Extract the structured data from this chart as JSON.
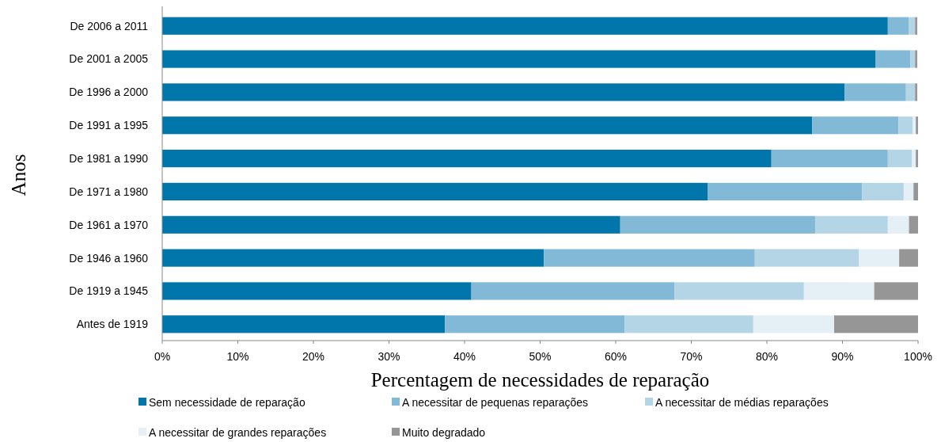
{
  "chart_data": {
    "type": "bar",
    "orientation": "horizontal",
    "stacked": true,
    "xlabel": "Percentagem de necessidades de reparação",
    "ylabel": "Anos",
    "legend": "bottom",
    "xlim": [
      0,
      100
    ],
    "xticks": [
      {
        "value": 0,
        "label": "0%"
      },
      {
        "value": 10,
        "label": "10%"
      },
      {
        "value": 20,
        "label": "20%"
      },
      {
        "value": 30,
        "label": "30%"
      },
      {
        "value": 40,
        "label": "40%"
      },
      {
        "value": 50,
        "label": "50%"
      },
      {
        "value": 60,
        "label": "60%"
      },
      {
        "value": 70,
        "label": "70%"
      },
      {
        "value": 80,
        "label": "80%"
      },
      {
        "value": 90,
        "label": "90%"
      },
      {
        "value": 100,
        "label": "100%"
      }
    ],
    "categories": [
      "De 2006 a 2011",
      "De 2001 a 2005",
      "De 1996 a 2000",
      "De 1991 a 1995",
      "De 1981 a 1990",
      "De 1971 a 1980",
      "De 1961 a 1970",
      "De 1946 a 1960",
      "De 1919 a 1945",
      "Antes de 1919"
    ],
    "series": [
      {
        "name": "Sem necessidade de reparação",
        "color": "#0076ab",
        "values": [
          96.0,
          94.4,
          90.3,
          86.0,
          80.6,
          72.2,
          60.6,
          50.5,
          40.9,
          37.4
        ]
      },
      {
        "name": "A necessitar de pequenas reparações",
        "color": "#82b9d7",
        "values": [
          2.8,
          4.6,
          8.1,
          11.4,
          15.4,
          20.4,
          25.8,
          27.9,
          26.9,
          23.8
        ]
      },
      {
        "name": "A necessitar de médias reparações",
        "color": "#b3d5e5",
        "values": [
          0.8,
          0.6,
          1.2,
          1.9,
          3.2,
          5.5,
          9.6,
          13.8,
          17.1,
          17.0
        ]
      },
      {
        "name": "A necessitar de grandes reparações",
        "color": "#e4eff6",
        "values": [
          null,
          null,
          null,
          0.4,
          0.5,
          1.3,
          2.8,
          5.3,
          9.3,
          10.7
        ]
      },
      {
        "name": "Muito degradado",
        "color": "#969696",
        "values": [
          0.3,
          0.3,
          0.3,
          0.3,
          0.3,
          0.6,
          1.2,
          2.5,
          5.8,
          11.1
        ]
      }
    ]
  }
}
